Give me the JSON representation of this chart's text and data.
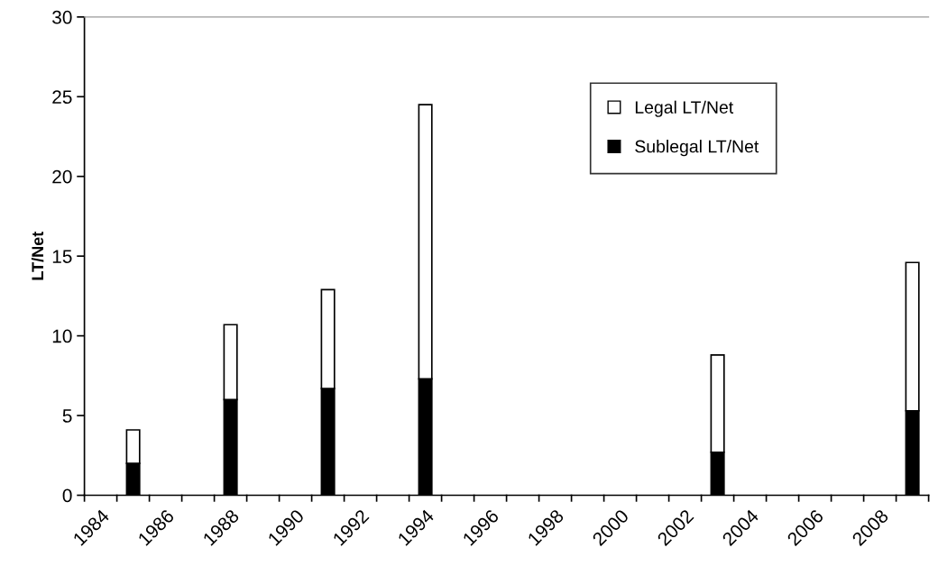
{
  "chart_data": {
    "type": "bar",
    "stacked": true,
    "ylabel": "LT/Net",
    "categories": [
      "1984",
      null,
      "1986",
      null,
      "1988",
      null,
      "1990",
      null,
      "1992",
      null,
      "1994",
      null,
      "1996",
      null,
      "1998",
      null,
      "2000",
      null,
      "2002",
      null,
      "2004",
      null,
      "2006",
      null,
      "2008",
      null
    ],
    "series": [
      {
        "name": "Sublegal LT/Net",
        "color": "#000000",
        "values": [
          null,
          2.0,
          null,
          null,
          6.0,
          null,
          null,
          6.7,
          null,
          null,
          7.3,
          null,
          null,
          null,
          null,
          null,
          null,
          null,
          null,
          2.7,
          null,
          null,
          null,
          null,
          null,
          5.3
        ]
      },
      {
        "name": "Legal LT/Net",
        "color": "#ffffff",
        "values": [
          null,
          2.1,
          null,
          null,
          4.7,
          null,
          null,
          6.2,
          null,
          null,
          17.2,
          null,
          null,
          null,
          null,
          null,
          null,
          null,
          null,
          6.1,
          null,
          null,
          null,
          null,
          null,
          9.3
        ]
      }
    ],
    "ylim": [
      0,
      30
    ],
    "yticks": [
      0,
      5,
      10,
      15,
      20,
      25,
      30
    ],
    "grid": false,
    "legend": "top right"
  }
}
